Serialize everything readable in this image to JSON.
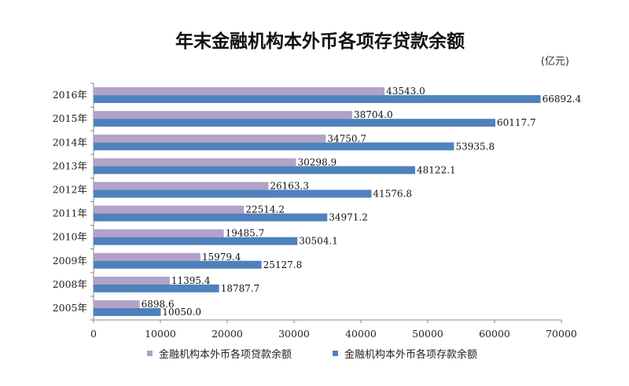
{
  "chart_data": {
    "type": "bar",
    "orientation": "horizontal",
    "title": "年末金融机构本外币各项存贷款余额",
    "unit": "(亿元)",
    "categories": [
      "2016年",
      "2015年",
      "2014年",
      "2013年",
      "2012年",
      "2011年",
      "2010年",
      "2009年",
      "2008年",
      "2005年"
    ],
    "series": [
      {
        "name": "金融机构本外币各项贷款余额",
        "color": "#b2a2c7",
        "values": [
          43543.0,
          38704.0,
          34750.7,
          30298.9,
          26163.3,
          22514.2,
          19485.7,
          15979.4,
          11395.4,
          6898.6
        ],
        "labels": [
          "43543.0",
          "38704.0",
          "34750.7",
          "30298.9",
          "26163.3",
          "22514.2",
          "19485.7",
          "15979.4",
          "11395.4",
          "6898.6"
        ]
      },
      {
        "name": "金融机构本外币各项存款余额",
        "color": "#4f81bd",
        "values": [
          66892.4,
          60117.7,
          53935.8,
          48122.1,
          41576.8,
          34971.2,
          30504.1,
          25127.8,
          18787.7,
          10050.0
        ],
        "labels": [
          "66892.4",
          "60117.7",
          "53935.8",
          "48122.1",
          "41576.8",
          "34971.2",
          "30504.1",
          "25127.8",
          "18787.7",
          "10050.0"
        ]
      }
    ],
    "xlim": [
      0,
      70000
    ],
    "xticks": [
      "0",
      "10000",
      "20000",
      "30000",
      "40000",
      "50000",
      "60000",
      "70000"
    ],
    "xtick_values": [
      0,
      10000,
      20000,
      30000,
      40000,
      50000,
      60000,
      70000
    ],
    "grid": false,
    "legend_position": "bottom"
  }
}
